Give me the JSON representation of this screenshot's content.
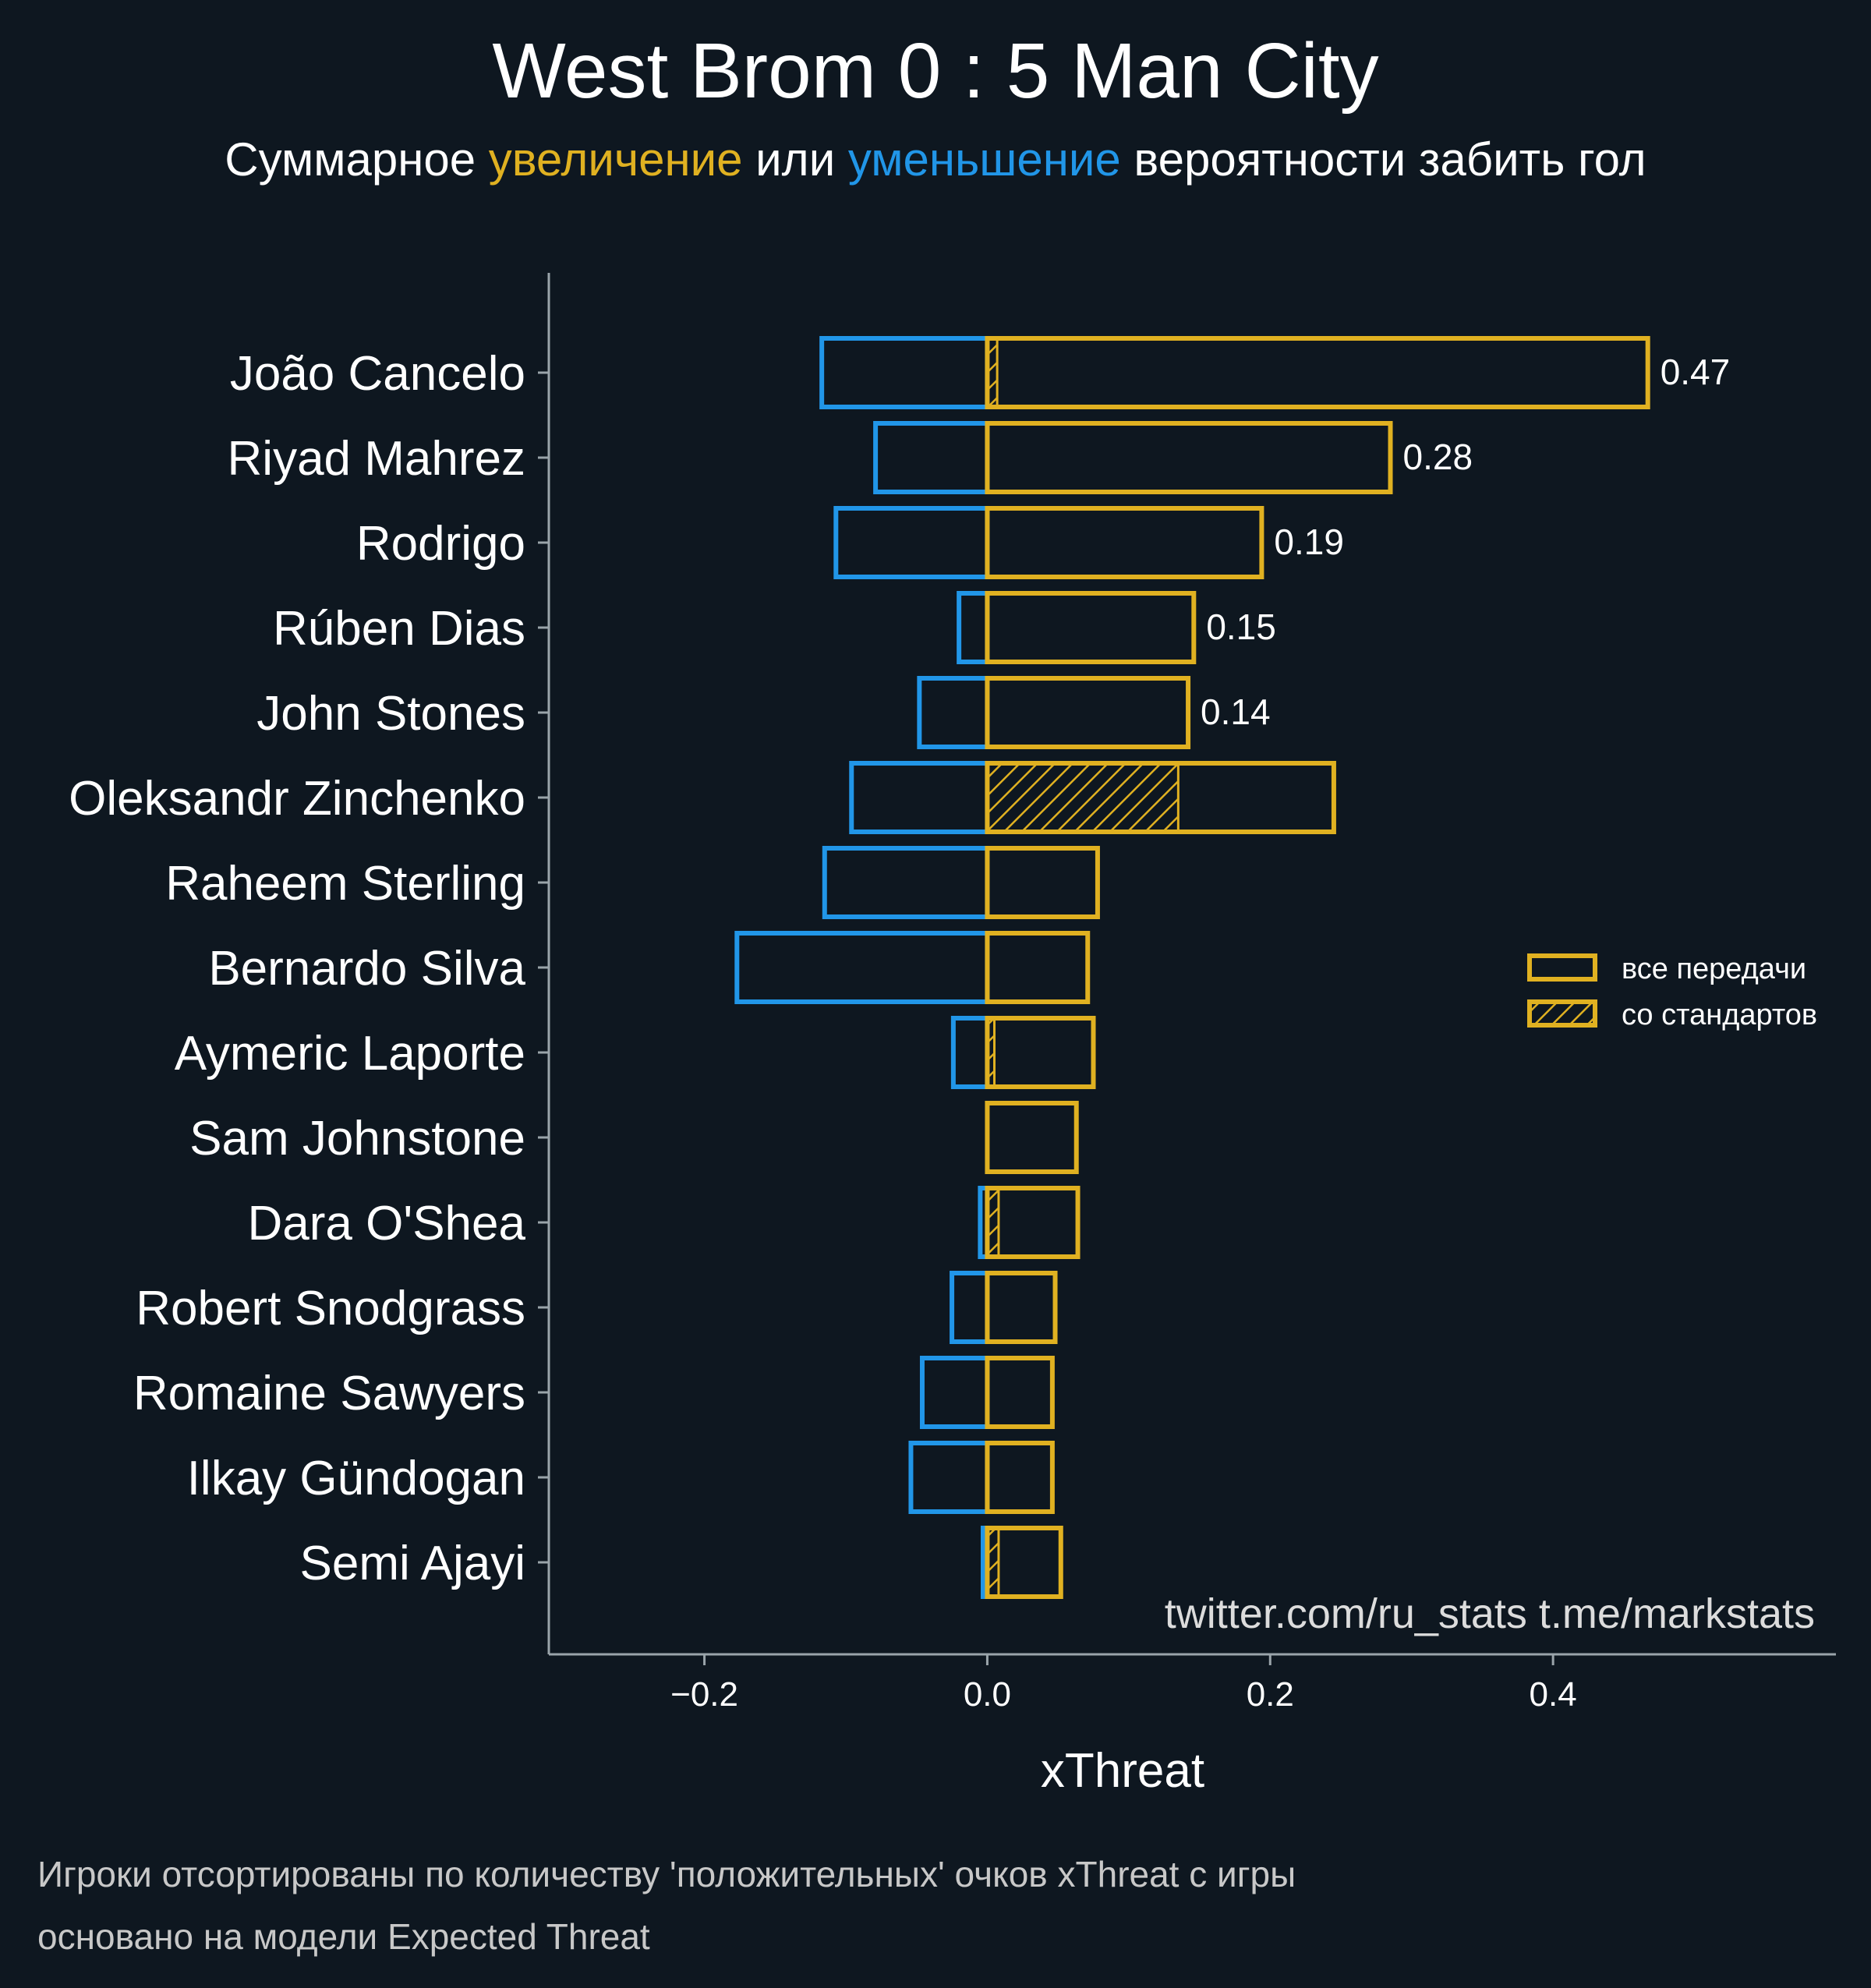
{
  "title": "West Brom 0 : 5 Man City",
  "subtitle": {
    "part1": "Суммарное ",
    "part2": "увеличение",
    "part3": " или ",
    "part4": "уменьшение",
    "part5": " вероятности забить гол"
  },
  "credits": "twitter.com/ru_stats  t.me/markstats",
  "footnotes": {
    "line1": "Игроки отсортированы по количеству 'положительных' очков xThreat с игры",
    "line2": "основано на модели Expected Threat"
  },
  "legend": {
    "all_passes": "все передачи",
    "set_pieces": "со стандартов"
  },
  "colors": {
    "background": "#0e1720",
    "positive": "#e0b121",
    "negative": "#2196e8",
    "text": "#ffffff",
    "axis": "#9aa4aa"
  },
  "chart_data": {
    "type": "bar",
    "orientation": "horizontal",
    "xlabel": "xThreat",
    "xlim": [
      -0.31,
      0.6
    ],
    "xticks": [
      -0.2,
      0.0,
      0.2,
      0.4
    ],
    "xtick_labels": [
      "−0.2",
      "0.0",
      "0.2",
      "0.4"
    ],
    "legend_position": "right",
    "categories": [
      "João Cancelo",
      "Riyad Mahrez",
      "Rodrigo",
      "Rúben Dias",
      "John Stones",
      "Oleksandr Zinchenko",
      "Raheem Sterling",
      "Bernardo Silva",
      "Aymeric Laporte",
      "Sam Johnstone",
      "Dara O'Shea",
      "Robert Snodgrass",
      "Romaine Sawyers",
      "Ilkay Gündogan",
      "Semi Ajayi"
    ],
    "series": [
      {
        "name": "все передачи",
        "values": [
          0.467,
          0.285,
          0.194,
          0.146,
          0.142,
          0.245,
          0.078,
          0.071,
          0.075,
          0.063,
          0.064,
          0.048,
          0.046,
          0.046,
          0.052
        ]
      },
      {
        "name": "со стандартов",
        "values": [
          0.007,
          0.0,
          0.0,
          0.0,
          0.0,
          0.135,
          0.0,
          0.0,
          0.005,
          0.0,
          0.008,
          0.0,
          0.0,
          0.0,
          0.008
        ]
      },
      {
        "values": [
          -0.117,
          -0.079,
          -0.107,
          -0.02,
          -0.048,
          -0.096,
          -0.115,
          -0.177,
          -0.024,
          0.0,
          -0.005,
          -0.025,
          -0.046,
          -0.054,
          -0.003
        ]
      }
    ],
    "data_labels": [
      "0.47",
      "0.28",
      "0.19",
      "0.15",
      "0.14"
    ]
  }
}
